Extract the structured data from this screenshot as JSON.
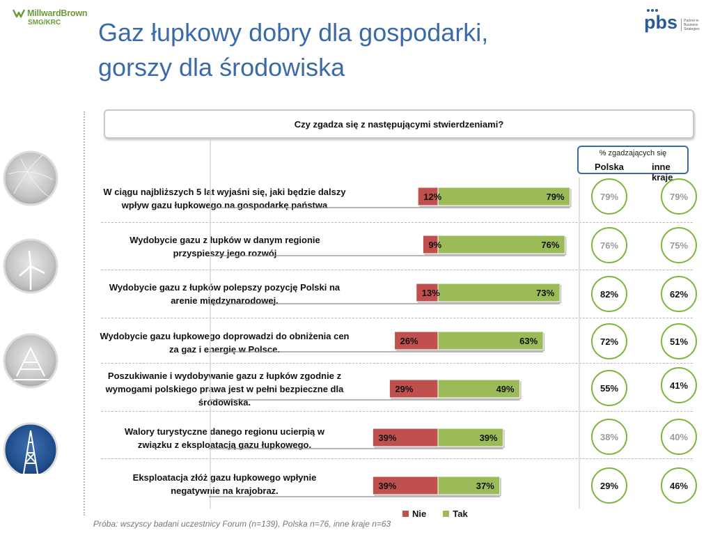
{
  "header": {
    "title_line1": "Gaz łupkowy dobry dla gospodarki,",
    "title_line2": "gorszy dla środowiska",
    "logo_left_line1": "MillwardBrown",
    "logo_left_line2": "SMG/KRC",
    "logo_right": "pbs",
    "logo_right_tagline": "Partner in Business Strategies"
  },
  "question": "Czy zgadza się z następującymi stwierdzeniami?",
  "legend_box": {
    "top": "% zgadzających się",
    "col1": "Polska",
    "col2": "inne kraje"
  },
  "colors": {
    "nie": "#c0504d",
    "tak": "#9bbb59",
    "circle_border": "#7fb43c",
    "title": "#3a6aa8"
  },
  "chart_data": {
    "type": "bar",
    "orientation": "horizontal-diverging",
    "categories": [
      "W ciągu najbliższych 5 lat wyjaśni się, jaki będzie dalszy wpływ gazu łupkowego na gospodarkę państwa",
      "Wydobycie gazu z łupków w danym regionie przyspieszy jego rozwój",
      "Wydobycie gazu z łupków polepszy pozycję Polski na arenie międzynarodowej.",
      "Wydobycie gazu łupkowego doprowadzi do obniżenia cen za gaz i energię w Polsce.",
      "Poszukiwanie i wydobywanie gazu z łupków zgodnie z wymogami polskiego prawa jest w pełni bezpieczne dla środowiska.",
      "Walory turystyczne danego regionu ucierpią w związku z eksploatacją gazu łupkowego.",
      "Eksploatacja złóż gazu łupkowego wpłynie negatywnie na krajobraz."
    ],
    "series": [
      {
        "name": "Nie",
        "values": [
          12,
          9,
          13,
          26,
          29,
          39,
          39
        ],
        "labels": [
          "12%",
          "9%",
          "13%",
          "26%",
          "29%",
          "39%",
          "39%"
        ]
      },
      {
        "name": "Tak",
        "values": [
          79,
          76,
          73,
          63,
          49,
          39,
          37
        ],
        "labels": [
          "79%",
          "76%",
          "73%",
          "63%",
          "49%",
          "39%",
          "37%"
        ]
      }
    ],
    "polska": [
      "79%",
      "76%",
      "82%",
      "72%",
      "55%",
      "38%",
      "29%"
    ],
    "inne_kraje": [
      "79%",
      "75%",
      "62%",
      "51%",
      "41%",
      "40%",
      "46%"
    ],
    "polska_muted": [
      true,
      true,
      false,
      false,
      false,
      true,
      false
    ],
    "inne_muted": [
      true,
      true,
      false,
      false,
      false,
      true,
      false
    ],
    "legend": [
      "Nie",
      "Tak"
    ],
    "legend_position": "bottom"
  },
  "sample_note": "Próba: wszyscy badani uczestnicy Forum (n=139), Polska n=76, inne kraje n=63"
}
